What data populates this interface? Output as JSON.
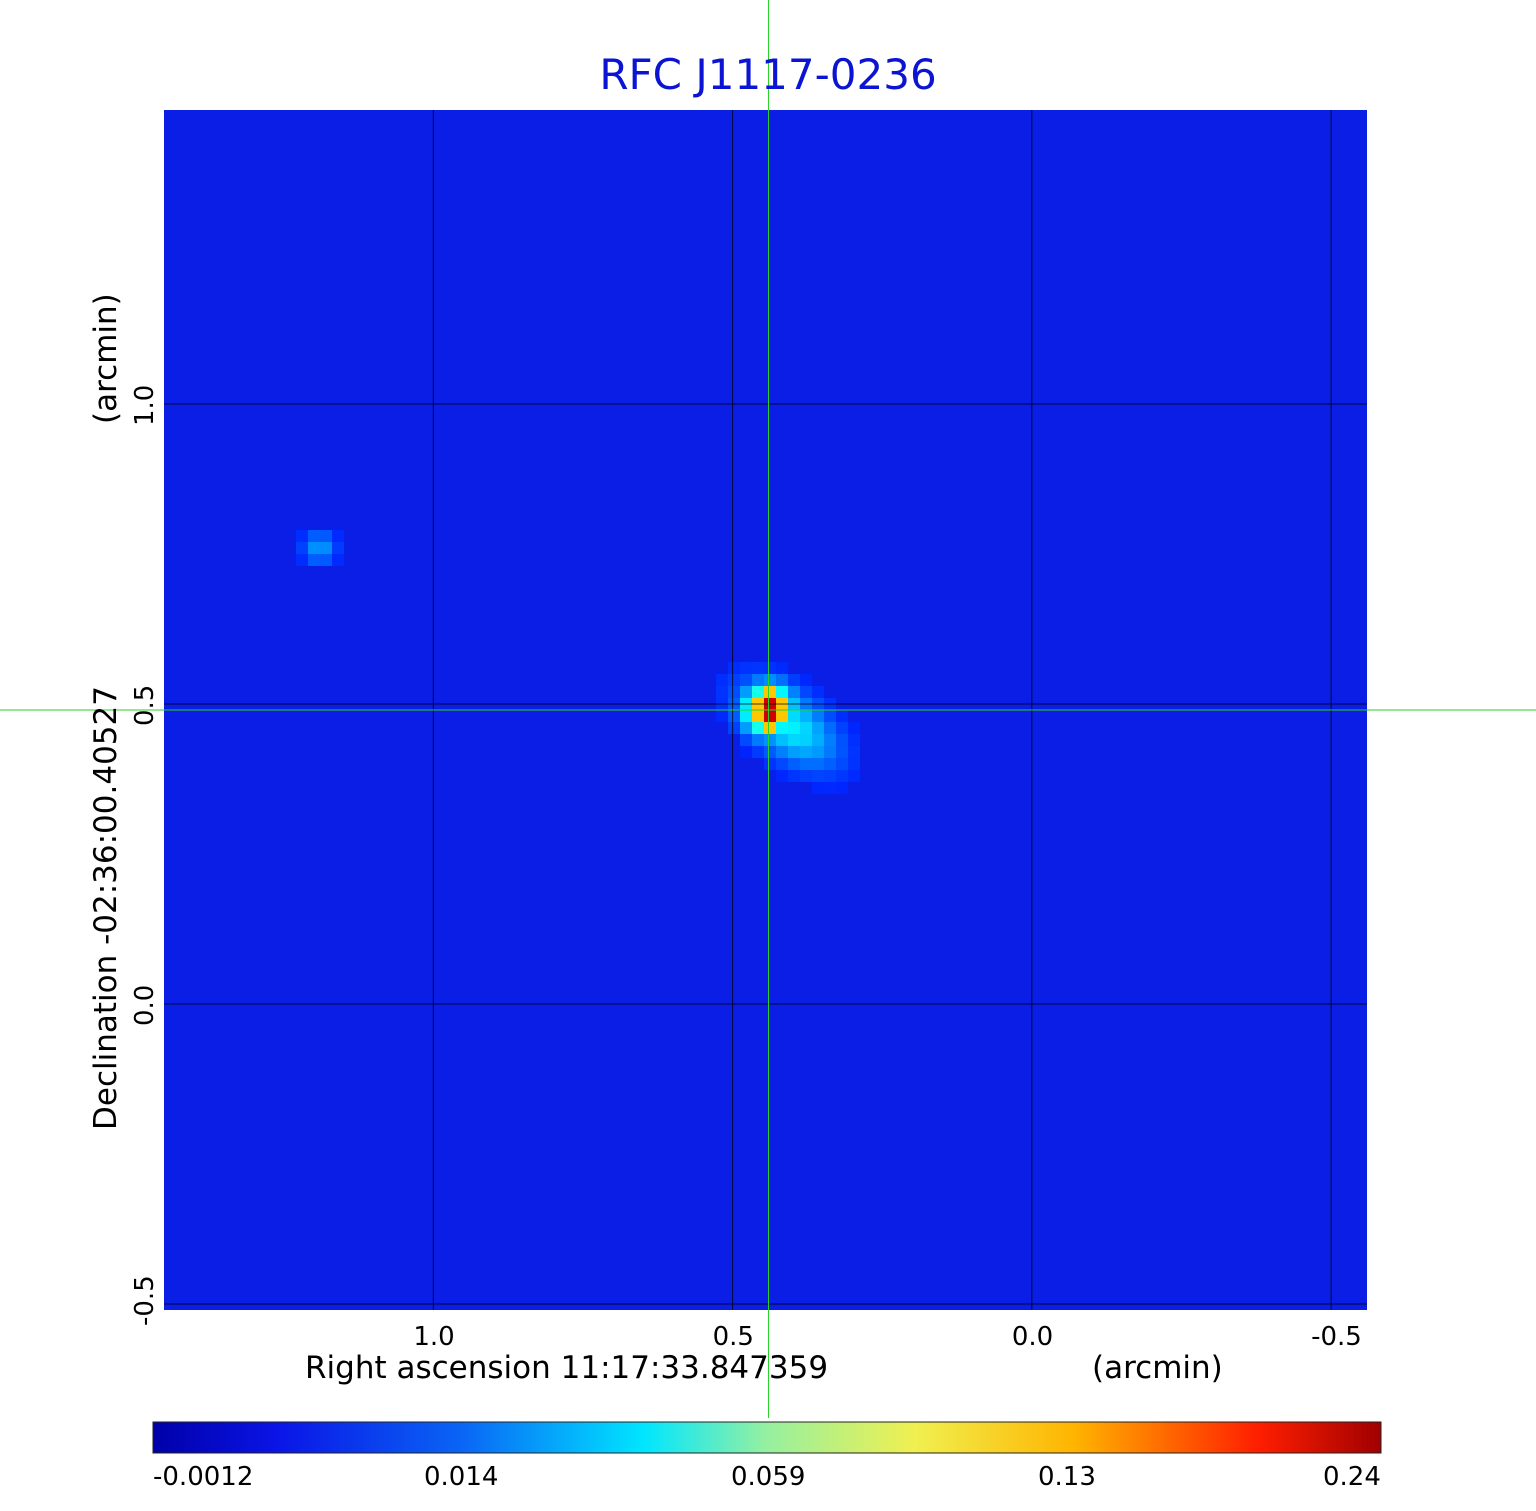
{
  "chart_data": {
    "type": "heatmap",
    "title": "RFC J1117-0236",
    "xlabel": "Right ascension  11:17:33.847359",
    "xlabel_unit": "(arcmin)",
    "ylabel": "Declination  -02:36:00.40527",
    "ylabel_unit": "(arcmin)",
    "xlim": [
      1.45,
      -0.56
    ],
    "ylim": [
      -0.51,
      1.49
    ],
    "x_ticks": [
      {
        "value": 1.0,
        "label": "1.0"
      },
      {
        "value": 0.5,
        "label": "0.5"
      },
      {
        "value": 0.0,
        "label": "0.0"
      },
      {
        "value": -0.5,
        "label": "-0.5"
      }
    ],
    "y_ticks": [
      {
        "value": 1.0,
        "label": "1.0"
      },
      {
        "value": 0.5,
        "label": "0.5"
      },
      {
        "value": 0.0,
        "label": "0.0"
      },
      {
        "value": -0.5,
        "label": "-0.5"
      }
    ],
    "grid": true,
    "crosshair": {
      "x": 0.44,
      "y": 0.49
    },
    "colormap": "jet",
    "colorbar": {
      "ticks": [
        {
          "value": -0.0012,
          "label": "-0.0012"
        },
        {
          "value": 0.014,
          "label": "0.014"
        },
        {
          "value": 0.059,
          "label": "0.059"
        },
        {
          "value": 0.13,
          "label": "0.13"
        },
        {
          "value": 0.24,
          "label": "0.24"
        }
      ],
      "min": -0.0012,
      "max": 0.24
    },
    "sources": [
      {
        "x": 0.44,
        "y": 0.49,
        "peak": 0.24
      },
      {
        "x": 1.19,
        "y": 0.76,
        "peak": 0.014
      }
    ],
    "background_level": -0.0012
  }
}
